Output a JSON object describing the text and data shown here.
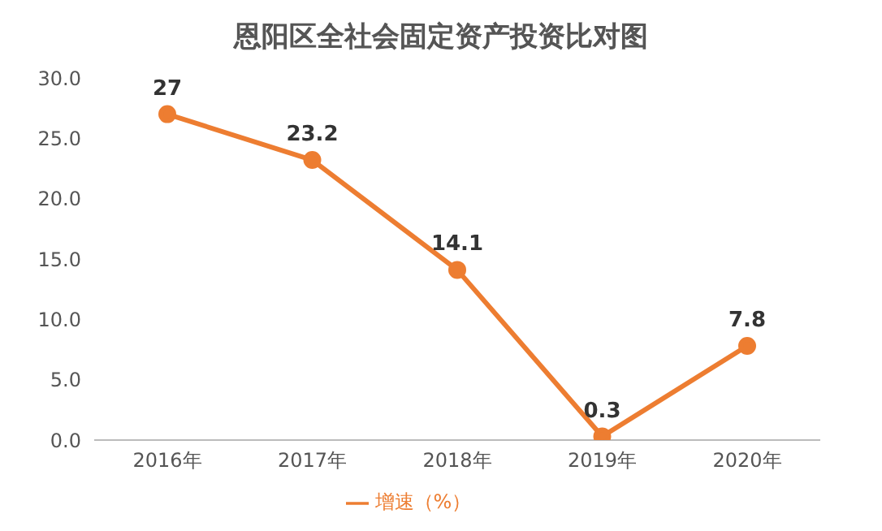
{
  "chart_data": {
    "type": "line",
    "title": "恩阳区全社会固定资产投资比对图",
    "categories": [
      "2016年",
      "2017年",
      "2018年",
      "2019年",
      "2020年"
    ],
    "series": [
      {
        "name": "增速（%）",
        "color": "#ed7d31",
        "values": [
          27,
          23.2,
          14.1,
          0.3,
          7.8
        ]
      }
    ],
    "ylim": [
      0,
      30
    ],
    "yticks": [
      {
        "value": 0,
        "label": "0.0"
      },
      {
        "value": 5,
        "label": "5.0"
      },
      {
        "value": 10,
        "label": "10.0"
      },
      {
        "value": 15,
        "label": "15.0"
      },
      {
        "value": 20,
        "label": "20.0"
      },
      {
        "value": 25,
        "label": "25.0"
      },
      {
        "value": 30,
        "label": "30.0"
      }
    ],
    "grid": false,
    "legend": "bottom",
    "marker": "circle",
    "line_style": "solid",
    "data_labels": true
  }
}
